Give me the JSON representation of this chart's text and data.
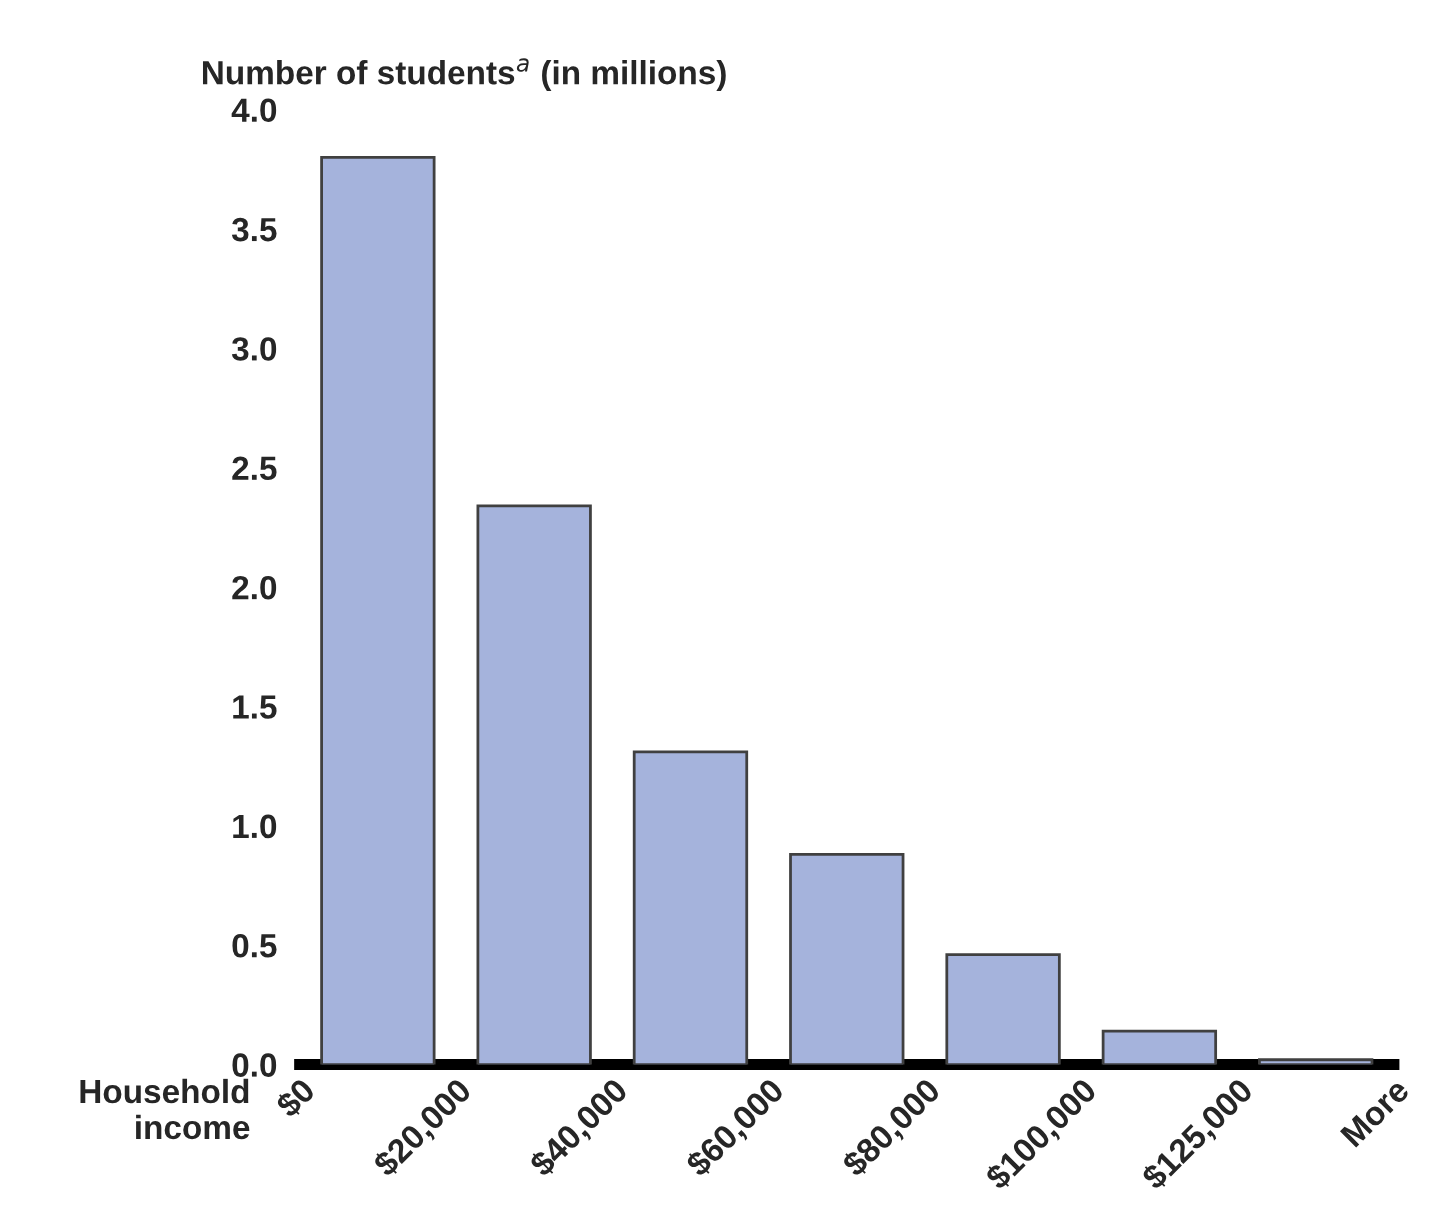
{
  "chart_data": {
    "type": "bar",
    "ylabel": "Number of students$^{a}$ (in millions)",
    "xlabel": "Household\nincome",
    "categories": [
      "$0",
      "$20,000",
      "$40,000",
      "$60,000",
      "$80,000",
      "$100,000",
      "$125,000",
      "More"
    ],
    "values": [
      3.8,
      2.34,
      1.31,
      0.88,
      0.46,
      0.14,
      0.02,
      null
    ],
    "color": "#a5b3dc",
    "ylim": [
      0,
      4
    ],
    "yticks": [
      {
        "value": 0,
        "label": "0.0"
      },
      {
        "value": 0.5,
        "label": "0.5"
      },
      {
        "value": 1,
        "label": "1.0"
      },
      {
        "value": 1.5,
        "label": "1.5"
      },
      {
        "value": 2,
        "label": "2.0"
      },
      {
        "value": 2.5,
        "label": "2.5"
      },
      {
        "value": 3,
        "label": "3.0"
      },
      {
        "value": 3.5,
        "label": "3.5"
      },
      {
        "value": 4,
        "label": "4.0"
      }
    ],
    "grid": false
  }
}
